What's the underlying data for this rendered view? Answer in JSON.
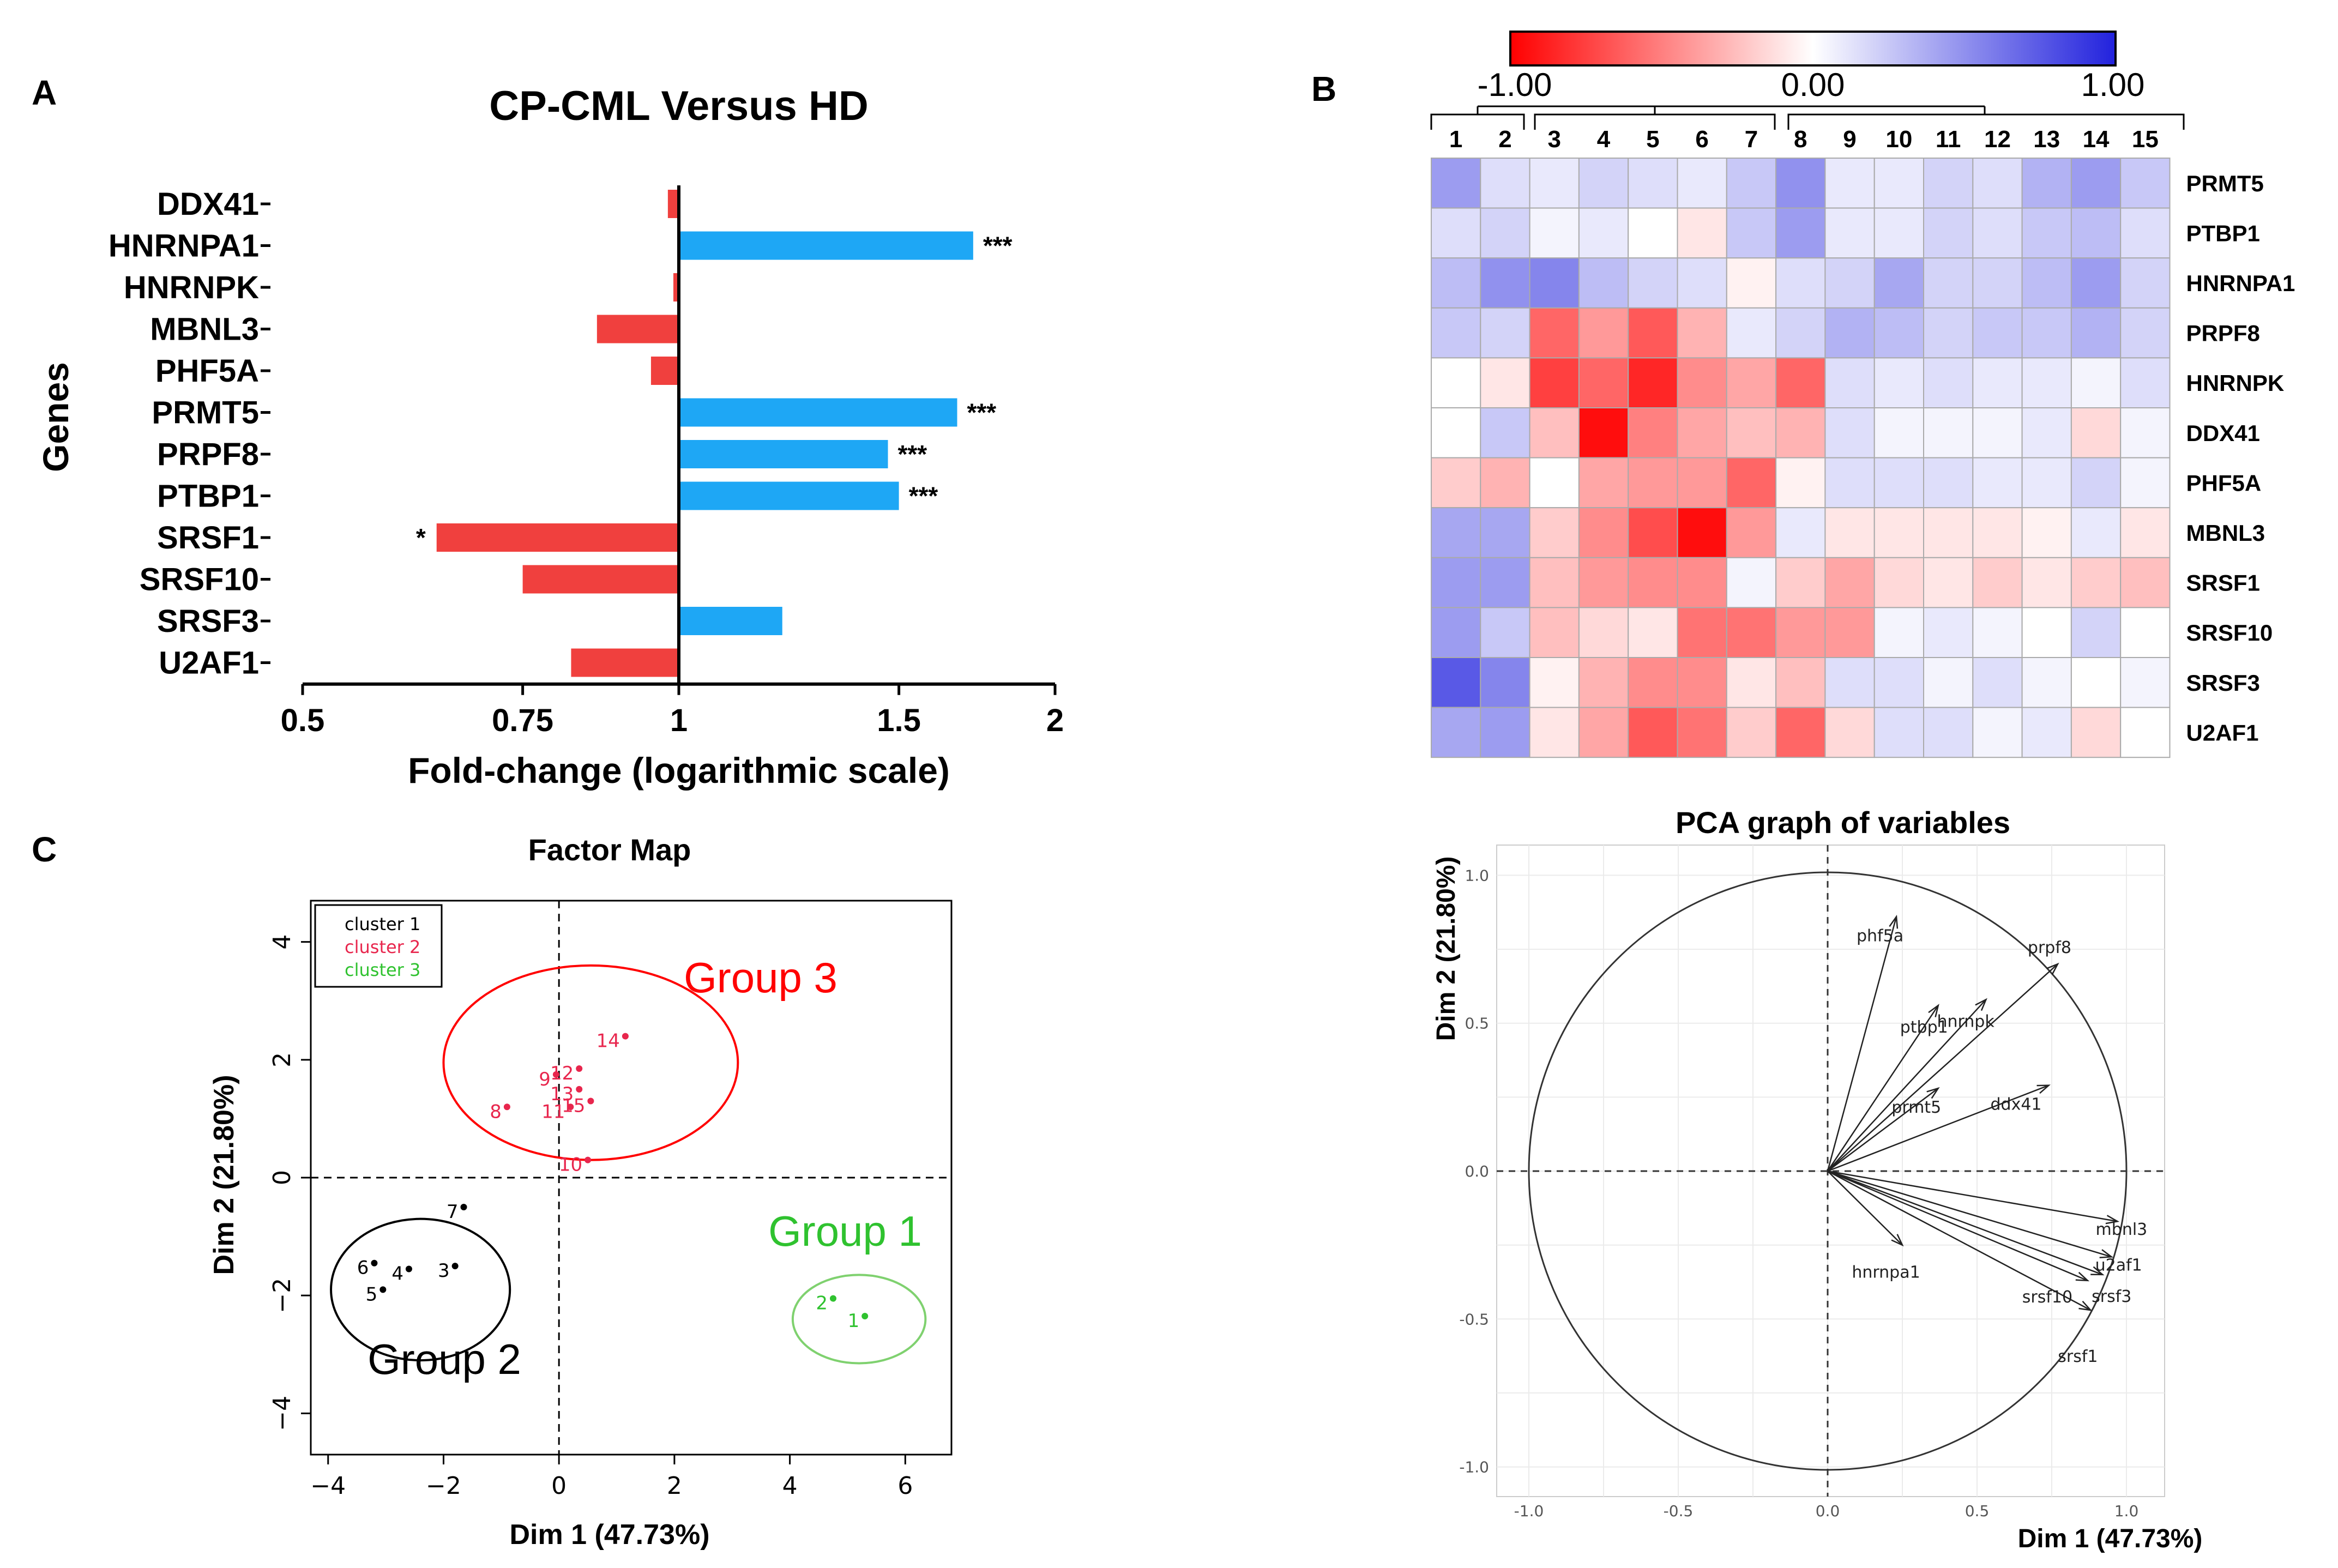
{
  "panels": {
    "a": "A",
    "b": "B",
    "c": "C"
  },
  "colors": {
    "up": "#1ea7f5",
    "down": "#f0403e",
    "cluster1": "#000000",
    "cluster2": "#e8264d",
    "cluster3": "#2fc22f",
    "group3_ellipse": "#ff0000",
    "group1_ellipse": "#7fd16f",
    "heat_neg": "#ff0000",
    "heat_pos": "#2222dd"
  },
  "chart_data": [
    {
      "type": "bar",
      "orientation": "horizontal",
      "title": "CP-CML Versus HD",
      "xlabel": "Fold-change (logarithmic scale)",
      "ylabel": "Genes",
      "xscale": "log",
      "xlim": [
        0.5,
        2
      ],
      "xticks": [
        "0.5",
        "0.75",
        "1",
        "1.5",
        "2"
      ],
      "categories": [
        "DDX41",
        "HNRNPA1",
        "HNRNPK",
        "MBNL3",
        "PHF5A",
        "PRMT5",
        "PRPF8",
        "PTBP1",
        "SRSF1",
        "SRSF10",
        "SRSF3",
        "U2AF1"
      ],
      "values": [
        0.98,
        1.72,
        0.99,
        0.86,
        0.95,
        1.67,
        1.47,
        1.5,
        0.64,
        0.75,
        1.21,
        0.82
      ],
      "significance": [
        "",
        "***",
        "",
        "",
        "",
        "***",
        "***",
        "***",
        "*",
        "",
        "",
        ""
      ]
    },
    {
      "type": "heatmap",
      "scale_min_label": "-1.00",
      "scale_mid_label": "0.00",
      "scale_max_label": "1.00",
      "scale_range": [
        -1,
        1
      ],
      "columns": [
        "1",
        "2",
        "3",
        "4",
        "5",
        "6",
        "7",
        "8",
        "9",
        "10",
        "11",
        "12",
        "13",
        "14",
        "15"
      ],
      "rows": [
        "PRMT5",
        "PTBP1",
        "HNRNPA1",
        "PRPF8",
        "HNRNPK",
        "DDX41",
        "PHF5A",
        "MBNL3",
        "SRSF1",
        "SRSF10",
        "SRSF3",
        "U2AF1"
      ],
      "values": [
        [
          0.45,
          0.15,
          0.1,
          0.2,
          0.15,
          0.1,
          0.25,
          0.5,
          0.1,
          0.1,
          0.2,
          0.15,
          0.35,
          0.45,
          0.25
        ],
        [
          0.15,
          0.2,
          0.05,
          0.1,
          0.0,
          -0.1,
          0.25,
          0.45,
          0.1,
          0.1,
          0.2,
          0.15,
          0.25,
          0.3,
          0.15
        ],
        [
          0.3,
          0.5,
          0.55,
          0.3,
          0.2,
          0.15,
          -0.05,
          0.15,
          0.2,
          0.4,
          0.2,
          0.2,
          0.3,
          0.45,
          0.2
        ],
        [
          0.25,
          0.2,
          -0.6,
          -0.4,
          -0.65,
          -0.3,
          0.1,
          0.2,
          0.35,
          0.3,
          0.2,
          0.25,
          0.25,
          0.35,
          0.2
        ],
        [
          0.0,
          -0.1,
          -0.75,
          -0.6,
          -0.85,
          -0.45,
          -0.35,
          -0.6,
          0.15,
          0.1,
          0.15,
          0.1,
          0.1,
          0.05,
          0.15
        ],
        [
          0.0,
          0.25,
          -0.25,
          -0.95,
          -0.5,
          -0.35,
          -0.25,
          -0.3,
          0.15,
          0.05,
          0.05,
          0.05,
          0.1,
          -0.15,
          0.05
        ],
        [
          -0.2,
          -0.3,
          0.0,
          -0.35,
          -0.4,
          -0.4,
          -0.6,
          -0.05,
          0.15,
          0.15,
          0.15,
          0.1,
          0.1,
          0.2,
          0.05
        ],
        [
          0.4,
          0.4,
          -0.2,
          -0.45,
          -0.7,
          -0.95,
          -0.4,
          0.1,
          -0.1,
          -0.1,
          -0.1,
          -0.1,
          -0.05,
          0.1,
          -0.1
        ],
        [
          0.45,
          0.45,
          -0.25,
          -0.4,
          -0.45,
          -0.45,
          0.05,
          -0.2,
          -0.35,
          -0.15,
          -0.1,
          -0.2,
          -0.1,
          -0.2,
          -0.25
        ],
        [
          0.45,
          0.25,
          -0.25,
          -0.15,
          -0.1,
          -0.55,
          -0.55,
          -0.4,
          -0.4,
          0.05,
          0.1,
          0.05,
          0.0,
          0.2,
          0.0
        ],
        [
          0.75,
          0.55,
          -0.05,
          -0.3,
          -0.45,
          -0.45,
          -0.1,
          -0.25,
          0.15,
          0.15,
          0.05,
          0.15,
          0.05,
          0.0,
          0.05
        ],
        [
          0.4,
          0.45,
          -0.1,
          -0.35,
          -0.65,
          -0.55,
          -0.2,
          -0.6,
          -0.15,
          0.15,
          0.15,
          0.05,
          0.1,
          -0.15,
          0.0
        ]
      ]
    },
    {
      "type": "scatter",
      "title": "Factor Map",
      "xlabel": "Dim 1 (47.73%)",
      "ylabel": "Dim 2 (21.80%)",
      "xlim": [
        -4.3,
        6.8
      ],
      "ylim": [
        -4.7,
        4.7
      ],
      "xticks": [
        "−4",
        "−2",
        "0",
        "2",
        "4",
        "6"
      ],
      "yticks": [
        "−4",
        "−2",
        "0",
        "2",
        "4"
      ],
      "xtick_values": [
        -4,
        -2,
        0,
        2,
        4,
        6
      ],
      "ytick_values": [
        -4,
        -2,
        0,
        2,
        4
      ],
      "legend": [
        "cluster 1",
        "cluster 2",
        "cluster 3"
      ],
      "groups": [
        {
          "label": "Group 3",
          "cluster": 2,
          "center": [
            0.55,
            1.95
          ],
          "radii": [
            2.55,
            1.65
          ]
        },
        {
          "label": "Group 1",
          "cluster": 3,
          "center": [
            5.2,
            -2.4
          ],
          "radii": [
            1.15,
            0.75
          ]
        },
        {
          "label": "Group 2",
          "cluster": 1,
          "center": [
            -2.4,
            -1.9
          ],
          "radii": [
            1.55,
            1.2
          ]
        }
      ],
      "points": [
        {
          "label": "1",
          "x": 5.3,
          "y": -2.35,
          "cluster": 3
        },
        {
          "label": "2",
          "x": 4.75,
          "y": -2.05,
          "cluster": 3
        },
        {
          "label": "3",
          "x": -1.8,
          "y": -1.5,
          "cluster": 1
        },
        {
          "label": "4",
          "x": -2.6,
          "y": -1.55,
          "cluster": 1
        },
        {
          "label": "5",
          "x": -3.05,
          "y": -1.9,
          "cluster": 1
        },
        {
          "label": "6",
          "x": -3.2,
          "y": -1.45,
          "cluster": 1
        },
        {
          "label": "7",
          "x": -1.65,
          "y": -0.5,
          "cluster": 1
        },
        {
          "label": "8",
          "x": -0.9,
          "y": 1.2,
          "cluster": 2
        },
        {
          "label": "9",
          "x": -0.05,
          "y": 1.75,
          "cluster": 2
        },
        {
          "label": "10",
          "x": 0.5,
          "y": 0.3,
          "cluster": 2
        },
        {
          "label": "11",
          "x": 0.2,
          "y": 1.2,
          "cluster": 2
        },
        {
          "label": "12",
          "x": 0.35,
          "y": 1.85,
          "cluster": 2
        },
        {
          "label": "13",
          "x": 0.35,
          "y": 1.5,
          "cluster": 2
        },
        {
          "label": "14",
          "x": 1.15,
          "y": 2.4,
          "cluster": 2
        },
        {
          "label": "15",
          "x": 0.55,
          "y": 1.3,
          "cluster": 2
        }
      ]
    },
    {
      "type": "vector",
      "title": "PCA graph of variables",
      "xlabel": "Dim 1 (47.73%)",
      "ylabel": "Dim 2 (21.80%)",
      "xlim": [
        -1.02,
        1.02
      ],
      "ylim": [
        -1.02,
        1.02
      ],
      "xticks": [
        "-1.0",
        "-0.5",
        "0.0",
        "0.5",
        "1.0"
      ],
      "yticks": [
        "-1.0",
        "-0.5",
        "0.0",
        "0.5",
        "1.0"
      ],
      "tick_values": [
        -1,
        -0.5,
        0,
        0.5,
        1
      ],
      "vectors": [
        {
          "label": "phf5a",
          "x": 0.23,
          "y": 0.86
        },
        {
          "label": "prpf8",
          "x": 0.77,
          "y": 0.7
        },
        {
          "label": "hnrnpk",
          "x": 0.53,
          "y": 0.58
        },
        {
          "label": "ptbp1",
          "x": 0.37,
          "y": 0.56
        },
        {
          "label": "prmt5",
          "x": 0.37,
          "y": 0.28
        },
        {
          "label": "ddx41",
          "x": 0.74,
          "y": 0.29
        },
        {
          "label": "mbnl3",
          "x": 0.97,
          "y": -0.17
        },
        {
          "label": "u2af1",
          "x": 0.95,
          "y": -0.29
        },
        {
          "label": "srsf3",
          "x": 0.92,
          "y": -0.35
        },
        {
          "label": "srsf10",
          "x": 0.87,
          "y": -0.37
        },
        {
          "label": "srsf1",
          "x": 0.88,
          "y": -0.47
        },
        {
          "label": "hnrnpa1",
          "x": 0.25,
          "y": -0.25
        }
      ]
    }
  ]
}
